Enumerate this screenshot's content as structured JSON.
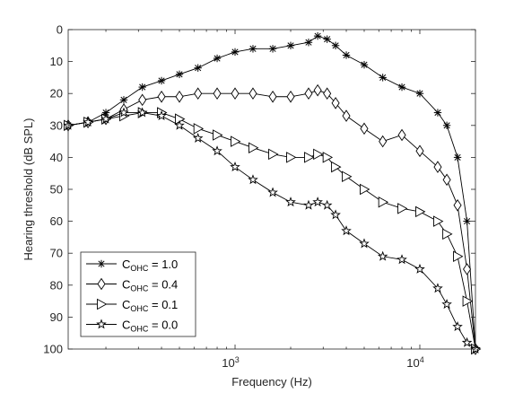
{
  "chart_data": {
    "type": "line",
    "title": "",
    "xlabel": "Frequency (Hz)",
    "ylabel": "Hearing threshold (dB SPL)",
    "xscale": "log",
    "xlim": [
      125,
      20000
    ],
    "ylim": [
      0,
      100
    ],
    "y_reversed": true,
    "grid": false,
    "legend_position": "bottom-left",
    "x_tick_labels": [
      {
        "value": 1000,
        "base": "10",
        "exp": "3"
      },
      {
        "value": 10000,
        "base": "10",
        "exp": "4"
      }
    ],
    "y_ticks": [
      0,
      10,
      20,
      30,
      40,
      50,
      60,
      70,
      80,
      90,
      100
    ],
    "series": [
      {
        "name": "C_OHC = 1.0",
        "legend_base": "C",
        "legend_sub": "OHC",
        "legend_value": " = 1.0",
        "marker": "asterisk",
        "points": [
          [
            125,
            30
          ],
          [
            160,
            29
          ],
          [
            200,
            26
          ],
          [
            250,
            22
          ],
          [
            315,
            18
          ],
          [
            400,
            16
          ],
          [
            500,
            14
          ],
          [
            630,
            12
          ],
          [
            800,
            9
          ],
          [
            1000,
            7
          ],
          [
            1250,
            6
          ],
          [
            1600,
            6
          ],
          [
            2000,
            5
          ],
          [
            2500,
            4
          ],
          [
            2800,
            2
          ],
          [
            3150,
            3
          ],
          [
            3500,
            5
          ],
          [
            4000,
            8
          ],
          [
            5000,
            11
          ],
          [
            6300,
            15
          ],
          [
            8000,
            18
          ],
          [
            10000,
            20
          ],
          [
            12500,
            26
          ],
          [
            14000,
            30
          ],
          [
            16000,
            40
          ],
          [
            18000,
            60
          ],
          [
            20000,
            100
          ]
        ]
      },
      {
        "name": "C_OHC = 0.4",
        "legend_base": "C",
        "legend_sub": "OHC",
        "legend_value": " = 0.4",
        "marker": "diamond",
        "points": [
          [
            125,
            30
          ],
          [
            160,
            29
          ],
          [
            200,
            28
          ],
          [
            250,
            25
          ],
          [
            315,
            22
          ],
          [
            400,
            21
          ],
          [
            500,
            21
          ],
          [
            630,
            20
          ],
          [
            800,
            20
          ],
          [
            1000,
            20
          ],
          [
            1250,
            20
          ],
          [
            1600,
            21
          ],
          [
            2000,
            21
          ],
          [
            2500,
            20
          ],
          [
            2800,
            19
          ],
          [
            3150,
            20
          ],
          [
            3500,
            23
          ],
          [
            4000,
            27
          ],
          [
            5000,
            31
          ],
          [
            6300,
            35
          ],
          [
            8000,
            33
          ],
          [
            10000,
            38
          ],
          [
            12500,
            43
          ],
          [
            14000,
            47
          ],
          [
            16000,
            55
          ],
          [
            18000,
            75
          ],
          [
            20000,
            100
          ]
        ]
      },
      {
        "name": "C_OHC = 0.1",
        "legend_base": "C",
        "legend_sub": "OHC",
        "legend_value": " = 0.1",
        "marker": "triangle-right",
        "points": [
          [
            125,
            30
          ],
          [
            160,
            29
          ],
          [
            200,
            28
          ],
          [
            250,
            27
          ],
          [
            315,
            26
          ],
          [
            400,
            26
          ],
          [
            500,
            28
          ],
          [
            630,
            31
          ],
          [
            800,
            33
          ],
          [
            1000,
            35
          ],
          [
            1250,
            37
          ],
          [
            1600,
            39
          ],
          [
            2000,
            40
          ],
          [
            2500,
            40
          ],
          [
            2800,
            39
          ],
          [
            3150,
            40
          ],
          [
            3500,
            43
          ],
          [
            4000,
            46
          ],
          [
            5000,
            50
          ],
          [
            6300,
            54
          ],
          [
            8000,
            56
          ],
          [
            10000,
            57
          ],
          [
            12500,
            60
          ],
          [
            14000,
            64
          ],
          [
            16000,
            71
          ],
          [
            18000,
            85
          ],
          [
            20000,
            100
          ]
        ]
      },
      {
        "name": "C_OHC = 0.0",
        "legend_base": "C",
        "legend_sub": "OHC",
        "legend_value": " = 0.0",
        "marker": "pentagram",
        "points": [
          [
            125,
            30
          ],
          [
            160,
            29
          ],
          [
            200,
            28
          ],
          [
            250,
            26
          ],
          [
            315,
            26
          ],
          [
            400,
            27
          ],
          [
            500,
            30
          ],
          [
            630,
            34
          ],
          [
            800,
            38
          ],
          [
            1000,
            43
          ],
          [
            1250,
            47
          ],
          [
            1600,
            51
          ],
          [
            2000,
            54
          ],
          [
            2500,
            55
          ],
          [
            2800,
            54
          ],
          [
            3150,
            55
          ],
          [
            3500,
            58
          ],
          [
            4000,
            63
          ],
          [
            5000,
            67
          ],
          [
            6300,
            71
          ],
          [
            8000,
            72
          ],
          [
            10000,
            75
          ],
          [
            12500,
            81
          ],
          [
            14000,
            86
          ],
          [
            16000,
            93
          ],
          [
            18000,
            98
          ],
          [
            20000,
            100
          ]
        ]
      }
    ]
  }
}
